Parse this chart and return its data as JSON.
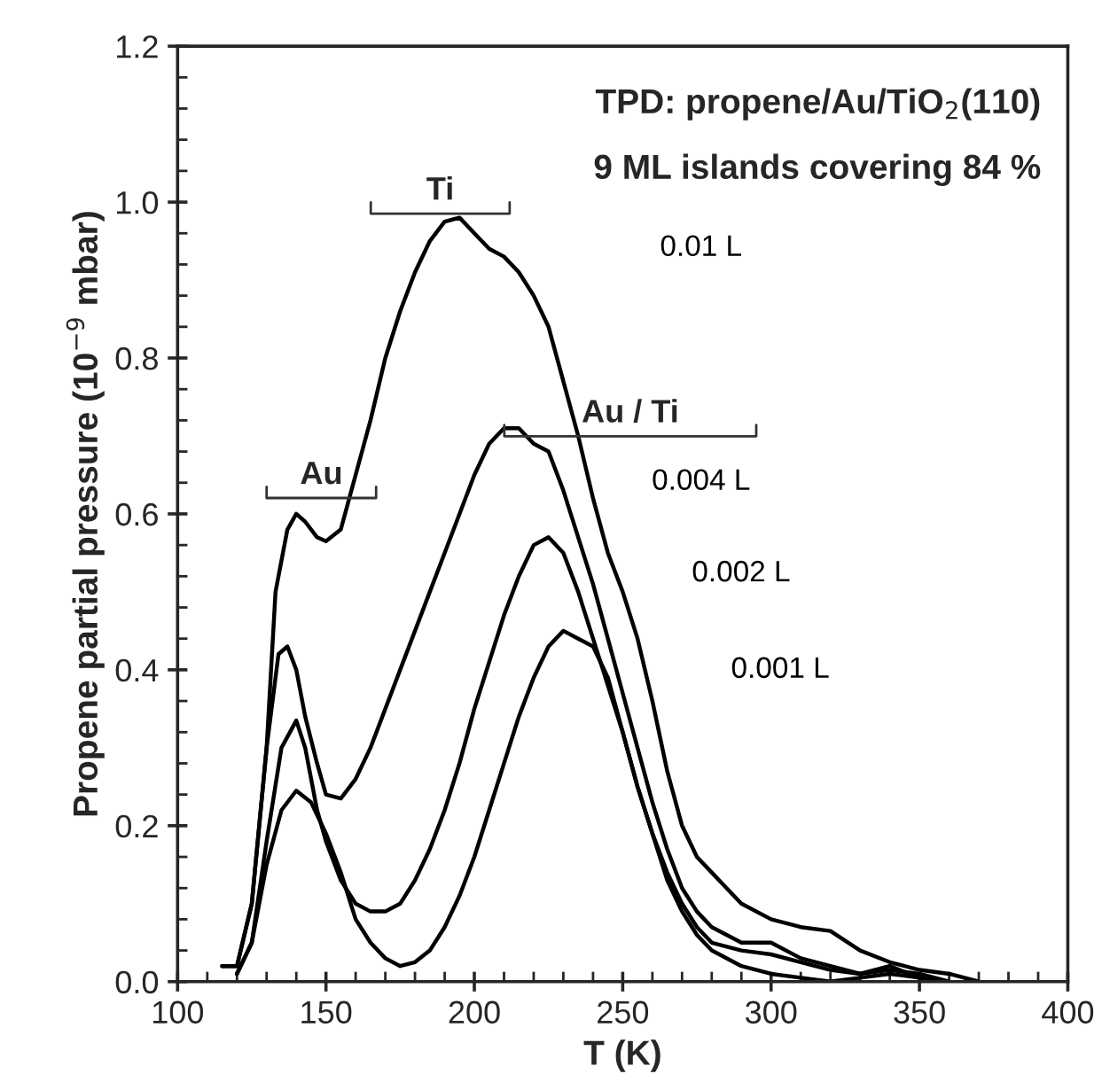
{
  "chart_data": {
    "type": "line",
    "title": "TPD: propene/Au/TiO$_{2}$(110)",
    "subtitle": "9 ML islands covering 84 %",
    "xlabel": "T (K)",
    "ylabel": "Propene partial pressure (10$^{−9}$ mbar)",
    "xlim": [
      100,
      400
    ],
    "xticks": [
      100,
      150,
      200,
      250,
      300,
      350,
      400
    ],
    "ylim": [
      0,
      1.2
    ],
    "yticks": [
      {
        "value": 0,
        "label": "0.0"
      },
      {
        "value": 0.2,
        "label": "0.2"
      },
      {
        "value": 0.4,
        "label": "0.4"
      },
      {
        "value": 0.6,
        "label": "0.6"
      },
      {
        "value": 0.8,
        "label": "0.8"
      },
      {
        "value": 1.0,
        "label": "1.0"
      },
      {
        "value": 1.2,
        "label": "1.2"
      }
    ],
    "grid": false,
    "marker": "none",
    "line_style": "solid",
    "annotations": [
      "Au",
      "Ti",
      "Au / Ti",
      "0.01 L",
      "0.004 L",
      "0.002 L",
      "0.001 L"
    ],
    "series": [
      {
        "color": "#000000",
        "x": [
          115,
          120,
          125,
          130,
          133,
          137,
          140,
          143,
          147,
          150,
          155,
          160,
          165,
          170,
          175,
          180,
          185,
          190,
          195,
          200,
          205,
          210,
          215,
          220,
          225,
          230,
          235,
          240,
          245,
          250,
          255,
          260,
          265,
          270,
          275,
          280,
          285,
          290,
          300,
          310,
          320,
          330,
          340,
          350,
          360,
          370
        ],
        "values": [
          0.02,
          0.02,
          0.1,
          0.3,
          0.5,
          0.58,
          0.6,
          0.59,
          0.57,
          0.565,
          0.58,
          0.65,
          0.72,
          0.8,
          0.86,
          0.91,
          0.95,
          0.975,
          0.98,
          0.96,
          0.94,
          0.93,
          0.91,
          0.88,
          0.84,
          0.77,
          0.7,
          0.62,
          0.55,
          0.5,
          0.44,
          0.36,
          0.27,
          0.2,
          0.16,
          0.14,
          0.12,
          0.1,
          0.08,
          0.07,
          0.065,
          0.04,
          0.025,
          0.015,
          0.01,
          0.0
        ]
      },
      {
        "color": "#000000",
        "x": [
          115,
          120,
          125,
          130,
          134,
          137,
          140,
          143,
          147,
          150,
          155,
          160,
          165,
          170,
          175,
          180,
          185,
          190,
          195,
          200,
          205,
          210,
          215,
          220,
          225,
          230,
          235,
          240,
          245,
          250,
          255,
          260,
          265,
          270,
          275,
          280,
          290,
          300,
          310,
          320,
          330,
          340,
          350,
          360
        ],
        "values": [
          0.02,
          0.02,
          0.1,
          0.3,
          0.42,
          0.43,
          0.4,
          0.34,
          0.28,
          0.24,
          0.235,
          0.26,
          0.3,
          0.35,
          0.4,
          0.45,
          0.5,
          0.55,
          0.6,
          0.65,
          0.69,
          0.71,
          0.71,
          0.69,
          0.68,
          0.63,
          0.57,
          0.51,
          0.44,
          0.37,
          0.3,
          0.23,
          0.17,
          0.12,
          0.09,
          0.07,
          0.05,
          0.05,
          0.03,
          0.02,
          0.01,
          0.02,
          0.005,
          0.0
        ]
      },
      {
        "color": "#000000",
        "x": [
          120,
          125,
          130,
          135,
          140,
          143,
          147,
          150,
          155,
          160,
          165,
          170,
          175,
          180,
          185,
          190,
          195,
          200,
          205,
          210,
          215,
          220,
          225,
          230,
          235,
          240,
          245,
          250,
          255,
          260,
          265,
          270,
          275,
          280,
          290,
          300,
          310,
          320,
          330,
          340,
          350,
          360
        ],
        "values": [
          0.01,
          0.05,
          0.18,
          0.3,
          0.335,
          0.3,
          0.22,
          0.18,
          0.13,
          0.1,
          0.09,
          0.09,
          0.1,
          0.13,
          0.17,
          0.22,
          0.28,
          0.35,
          0.41,
          0.47,
          0.52,
          0.56,
          0.57,
          0.55,
          0.5,
          0.44,
          0.38,
          0.32,
          0.25,
          0.19,
          0.14,
          0.1,
          0.07,
          0.05,
          0.04,
          0.035,
          0.025,
          0.015,
          0.01,
          0.015,
          0.01,
          0.0
        ]
      },
      {
        "color": "#000000",
        "x": [
          120,
          125,
          130,
          135,
          140,
          145,
          150,
          155,
          160,
          165,
          170,
          175,
          180,
          185,
          190,
          195,
          200,
          205,
          210,
          215,
          220,
          225,
          230,
          235,
          240,
          245,
          250,
          255,
          260,
          265,
          270,
          275,
          280,
          290,
          300,
          310,
          320,
          330,
          340,
          350,
          360
        ],
        "values": [
          0.01,
          0.05,
          0.15,
          0.22,
          0.245,
          0.23,
          0.19,
          0.14,
          0.08,
          0.05,
          0.03,
          0.02,
          0.025,
          0.04,
          0.07,
          0.11,
          0.16,
          0.22,
          0.28,
          0.34,
          0.39,
          0.43,
          0.45,
          0.44,
          0.43,
          0.39,
          0.32,
          0.25,
          0.19,
          0.13,
          0.09,
          0.06,
          0.04,
          0.02,
          0.01,
          0.005,
          0.0,
          0.005,
          0.01,
          0.005,
          0.0
        ]
      }
    ]
  }
}
